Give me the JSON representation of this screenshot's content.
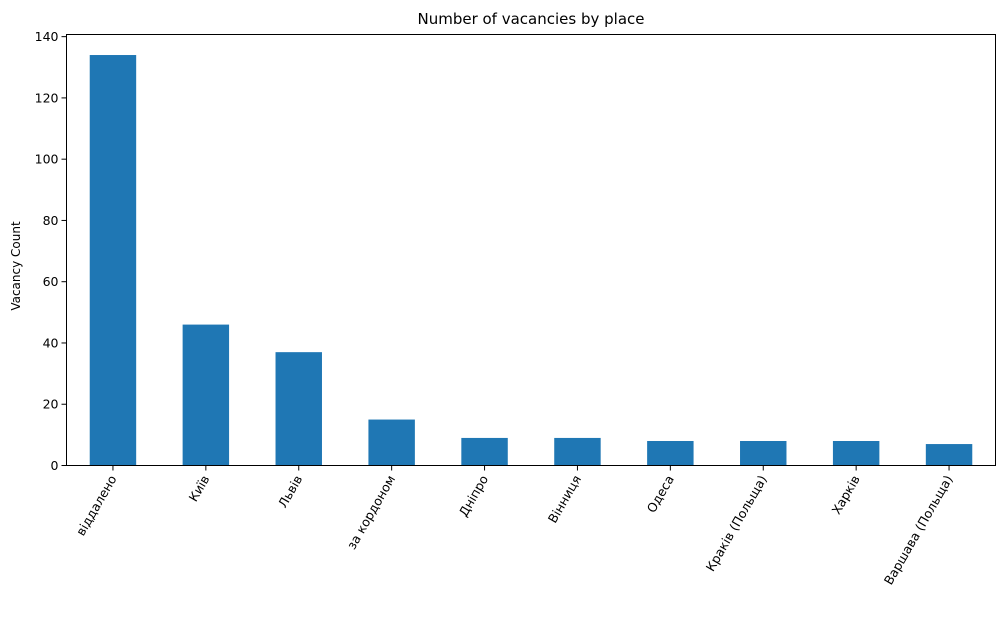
{
  "chart_data": {
    "type": "bar",
    "title": "Number of vacancies by place",
    "xlabel": "",
    "ylabel": "Vacancy Count",
    "categories": [
      "віддалено",
      "Київ",
      "Львів",
      "за кордоном",
      "Дніпро",
      "Вінниця",
      "Одеса",
      "Краків (Польща)",
      "Харків",
      "Варшава (Польща)"
    ],
    "values": [
      134,
      46,
      37,
      15,
      9,
      9,
      8,
      8,
      8,
      7
    ],
    "ylim": [
      0,
      140.7
    ],
    "yticks": [
      0,
      20,
      40,
      60,
      80,
      100,
      120,
      140
    ],
    "bar_color": "#1f77b4",
    "grid": false,
    "xtick_rotation": "60 degrees"
  }
}
